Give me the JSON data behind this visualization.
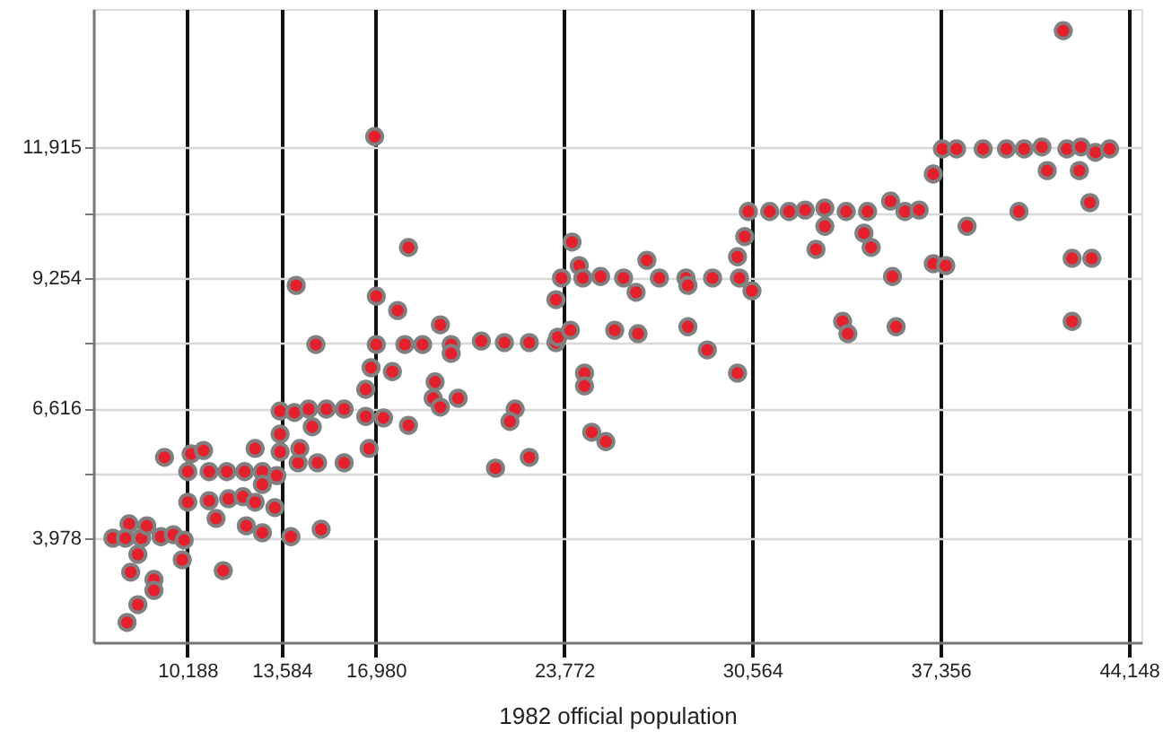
{
  "chart_data": {
    "type": "scatter",
    "xlabel": "1982 official population",
    "xlim": [
      6792,
      44600
    ],
    "ylim": [
      1866,
      14720
    ],
    "xticks": [
      {
        "value": 10188,
        "label": "10,188"
      },
      {
        "value": 13584,
        "label": "13,584"
      },
      {
        "value": 16980,
        "label": "16,980"
      },
      {
        "value": 23772,
        "label": "23,772"
      },
      {
        "value": 30564,
        "label": "30,564"
      },
      {
        "value": 37356,
        "label": "37,356"
      },
      {
        "value": 44148,
        "label": "44,148"
      }
    ],
    "yticks": [
      {
        "value": 3978,
        "label": "3,978"
      },
      {
        "value": 5297,
        "label": null
      },
      {
        "value": 6616,
        "label": "6,616"
      },
      {
        "value": 7935,
        "label": null
      },
      {
        "value": 9254,
        "label": "9,254"
      },
      {
        "value": 10585,
        "label": null
      },
      {
        "value": 11915,
        "label": "11,915"
      }
    ],
    "grid": true,
    "marker": "circle",
    "series": [
      {
        "color": "#e3202b",
        "x": [
          7500,
          8080,
          7950,
          8530,
          8720,
          9230,
          9680,
          10070,
          10000,
          8400,
          8140,
          8980,
          8980,
          8400,
          8010,
          9360,
          10200,
          10320,
          10770,
          10970,
          11610,
          12250,
          12630,
          12890,
          13410,
          10200,
          10970,
          11220,
          11670,
          12190,
          12630,
          12890,
          12310,
          12890,
          11480,
          13340,
          13530,
          13530,
          13530,
          14050,
          14560,
          15200,
          15840,
          16620,
          16620,
          16810,
          16740,
          14180,
          14240,
          14880,
          15010,
          13920,
          15840,
          14690,
          14110,
          14820,
          16940,
          18160,
          17000,
          17770,
          19310,
          17000,
          18030,
          18670,
          19700,
          20790,
          21620,
          22520,
          23480,
          19700,
          17580,
          19120,
          19050,
          19310,
          19950,
          18160,
          22010,
          21820,
          21300,
          22520,
          17260,
          23550,
          23480,
          23680,
          24060,
          24320,
          24450,
          25090,
          25920,
          26760,
          26370,
          27210,
          28170,
          28240,
          29130,
          30100,
          30030,
          30290,
          30550,
          24000,
          25600,
          26440,
          28240,
          28940,
          30030,
          24510,
          24510,
          24770,
          25280,
          30420,
          31190,
          31890,
          32470,
          33180,
          33180,
          32860,
          33950,
          33820,
          34010,
          34720,
          34590,
          34850,
          35550,
          36070,
          36580,
          35620,
          35750,
          37090,
          37420,
          37930,
          38890,
          39730,
          40370,
          41010,
          41910,
          42420,
          42940,
          43450,
          41200,
          42360,
          42740,
          38310,
          40180,
          37090,
          37540,
          42100,
          42810,
          42100,
          41780
        ],
        "values": [
          3980,
          4270,
          3980,
          3980,
          4230,
          4010,
          4050,
          3940,
          3540,
          3650,
          3290,
          3140,
          2920,
          2630,
          2270,
          5620,
          5330,
          5690,
          5760,
          5330,
          5330,
          5330,
          5800,
          5330,
          5250,
          4710,
          4740,
          4380,
          4780,
          4820,
          4710,
          5070,
          4230,
          4090,
          3320,
          4600,
          5730,
          6560,
          6090,
          6530,
          6600,
          6600,
          6600,
          7000,
          6450,
          7440,
          5800,
          5510,
          5800,
          5510,
          4160,
          4010,
          5510,
          6240,
          9110,
          7910,
          12130,
          9880,
          8890,
          8600,
          8310,
          7910,
          7910,
          7910,
          7910,
          7980,
          7950,
          7950,
          7950,
          7730,
          7360,
          7150,
          6820,
          6640,
          6820,
          6270,
          6600,
          6350,
          5400,
          5620,
          6420,
          8060,
          8820,
          9260,
          9990,
          9510,
          9260,
          9290,
          9260,
          9620,
          8970,
          9260,
          9260,
          9110,
          9260,
          9260,
          9690,
          10100,
          9000,
          8200,
          8200,
          8130,
          8270,
          7800,
          7330,
          7330,
          7070,
          6130,
          5940,
          10610,
          10610,
          10610,
          10640,
          10680,
          10310,
          9840,
          10610,
          8380,
          8130,
          10610,
          10170,
          9880,
          10820,
          10610,
          10640,
          9290,
          8270,
          11370,
          11880,
          11880,
          11880,
          11880,
          11880,
          11920,
          11880,
          11920,
          11810,
          11880,
          11440,
          11440,
          10790,
          10310,
          10610,
          9550,
          9510,
          9660,
          9660,
          8380,
          14280
        ]
      }
    ]
  }
}
